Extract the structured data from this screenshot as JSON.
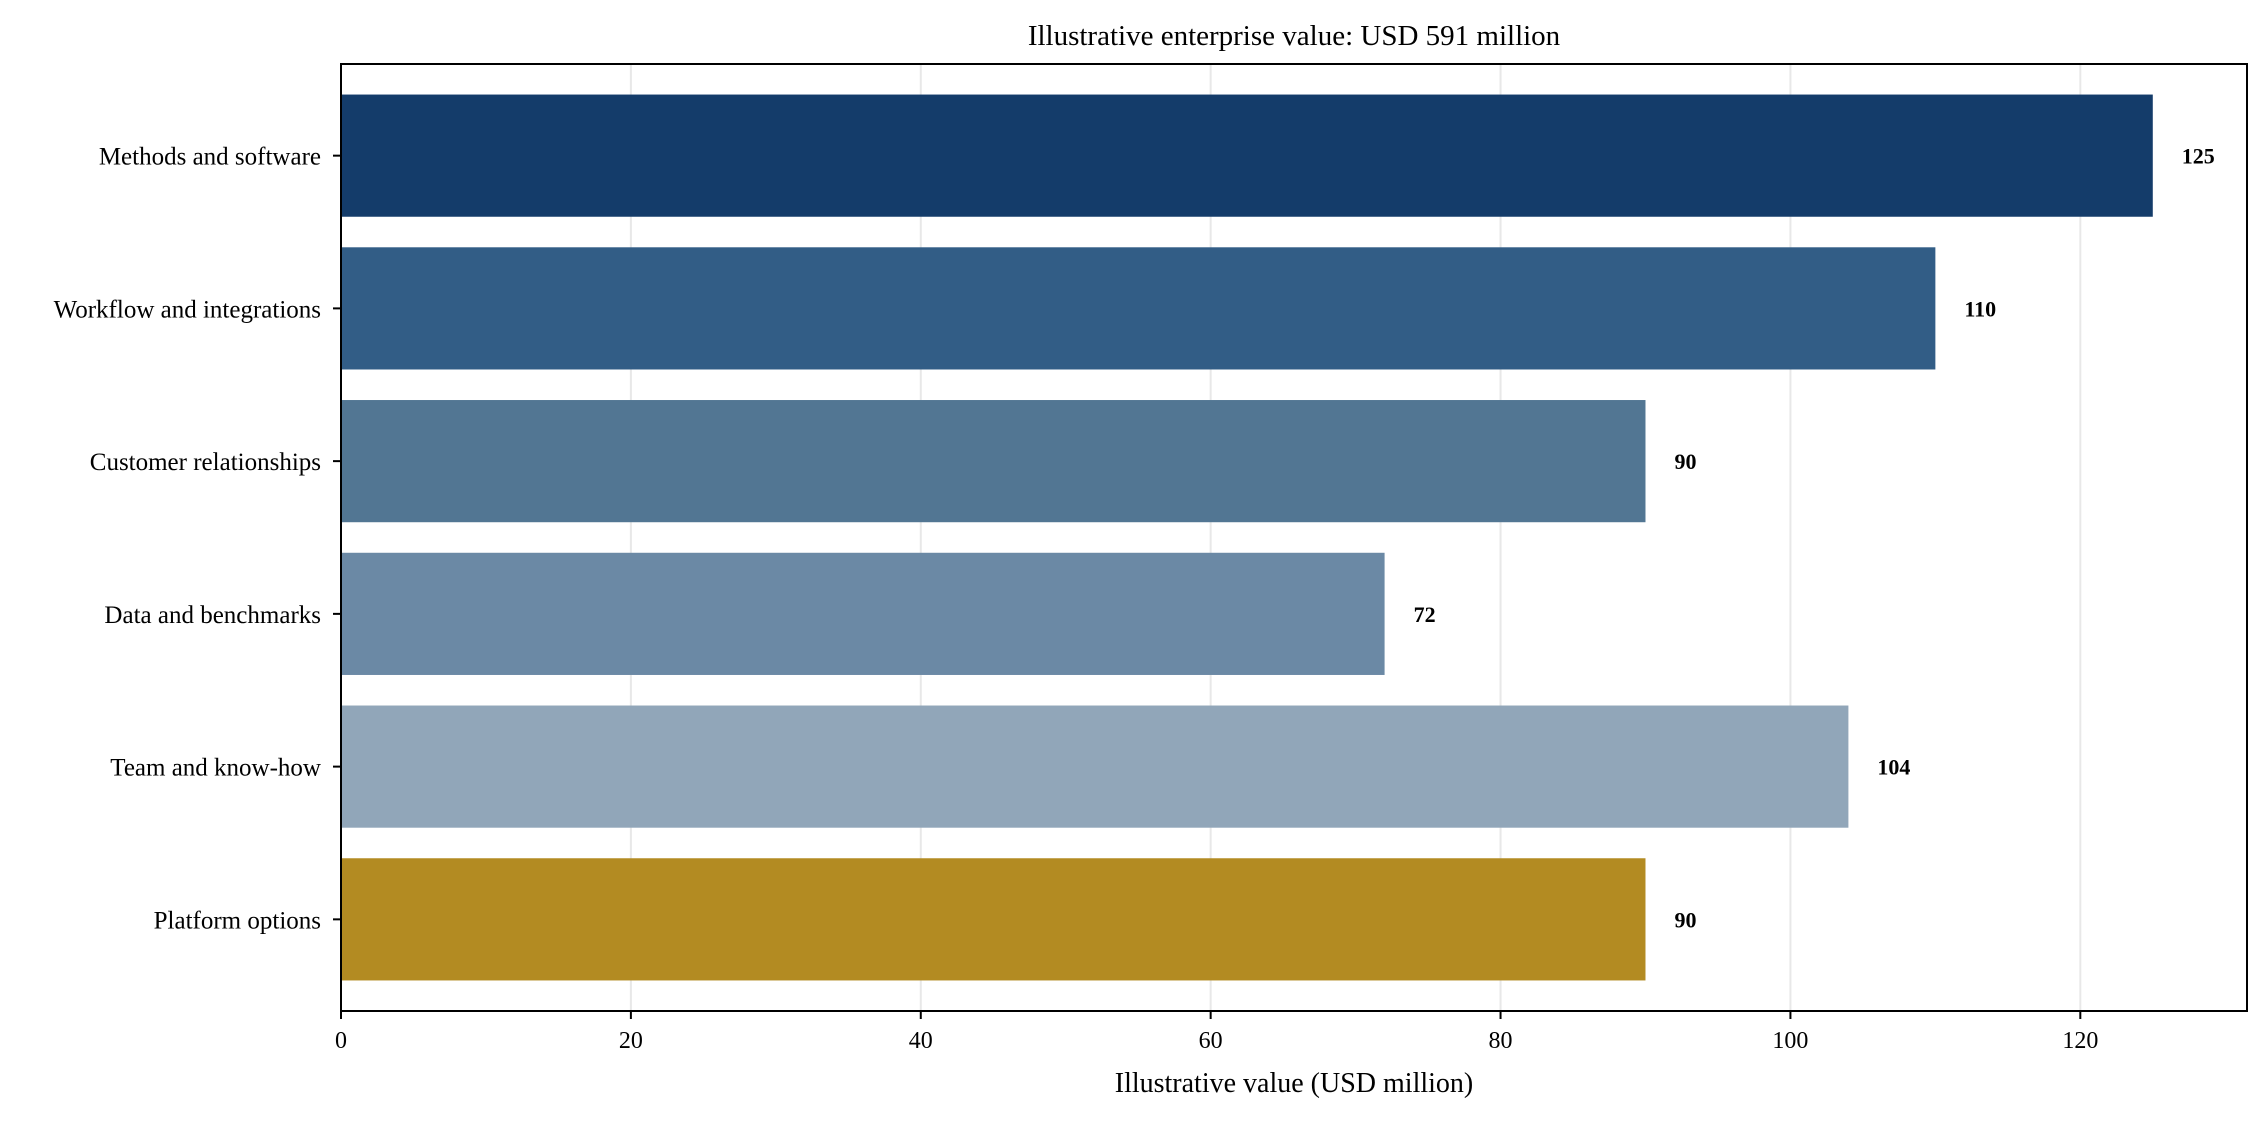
{
  "chart_data": {
    "type": "bar",
    "orientation": "horizontal",
    "title": "Illustrative enterprise value: USD 591 million",
    "xlabel": "Illustrative value (USD million)",
    "ylabel": "",
    "categories": [
      "Methods and software",
      "Workflow and integrations",
      "Customer relationships",
      "Data and benchmarks",
      "Team and know-how",
      "Platform options"
    ],
    "values": [
      125,
      110,
      90,
      72,
      104,
      90
    ],
    "value_labels": [
      "125",
      "110",
      "90",
      "72",
      "104",
      "90"
    ],
    "colors": [
      "#143c6a",
      "#325d86",
      "#527693",
      "#6b89a5",
      "#91a6b9",
      "#b38b22"
    ],
    "xlim": [
      0,
      131.5
    ],
    "xticks": [
      0,
      20,
      40,
      60,
      80,
      100,
      120
    ],
    "xtick_labels": [
      "0",
      "20",
      "40",
      "60",
      "80",
      "100",
      "120"
    ],
    "grid": "x-axis vertical gridlines",
    "legend": "none"
  }
}
